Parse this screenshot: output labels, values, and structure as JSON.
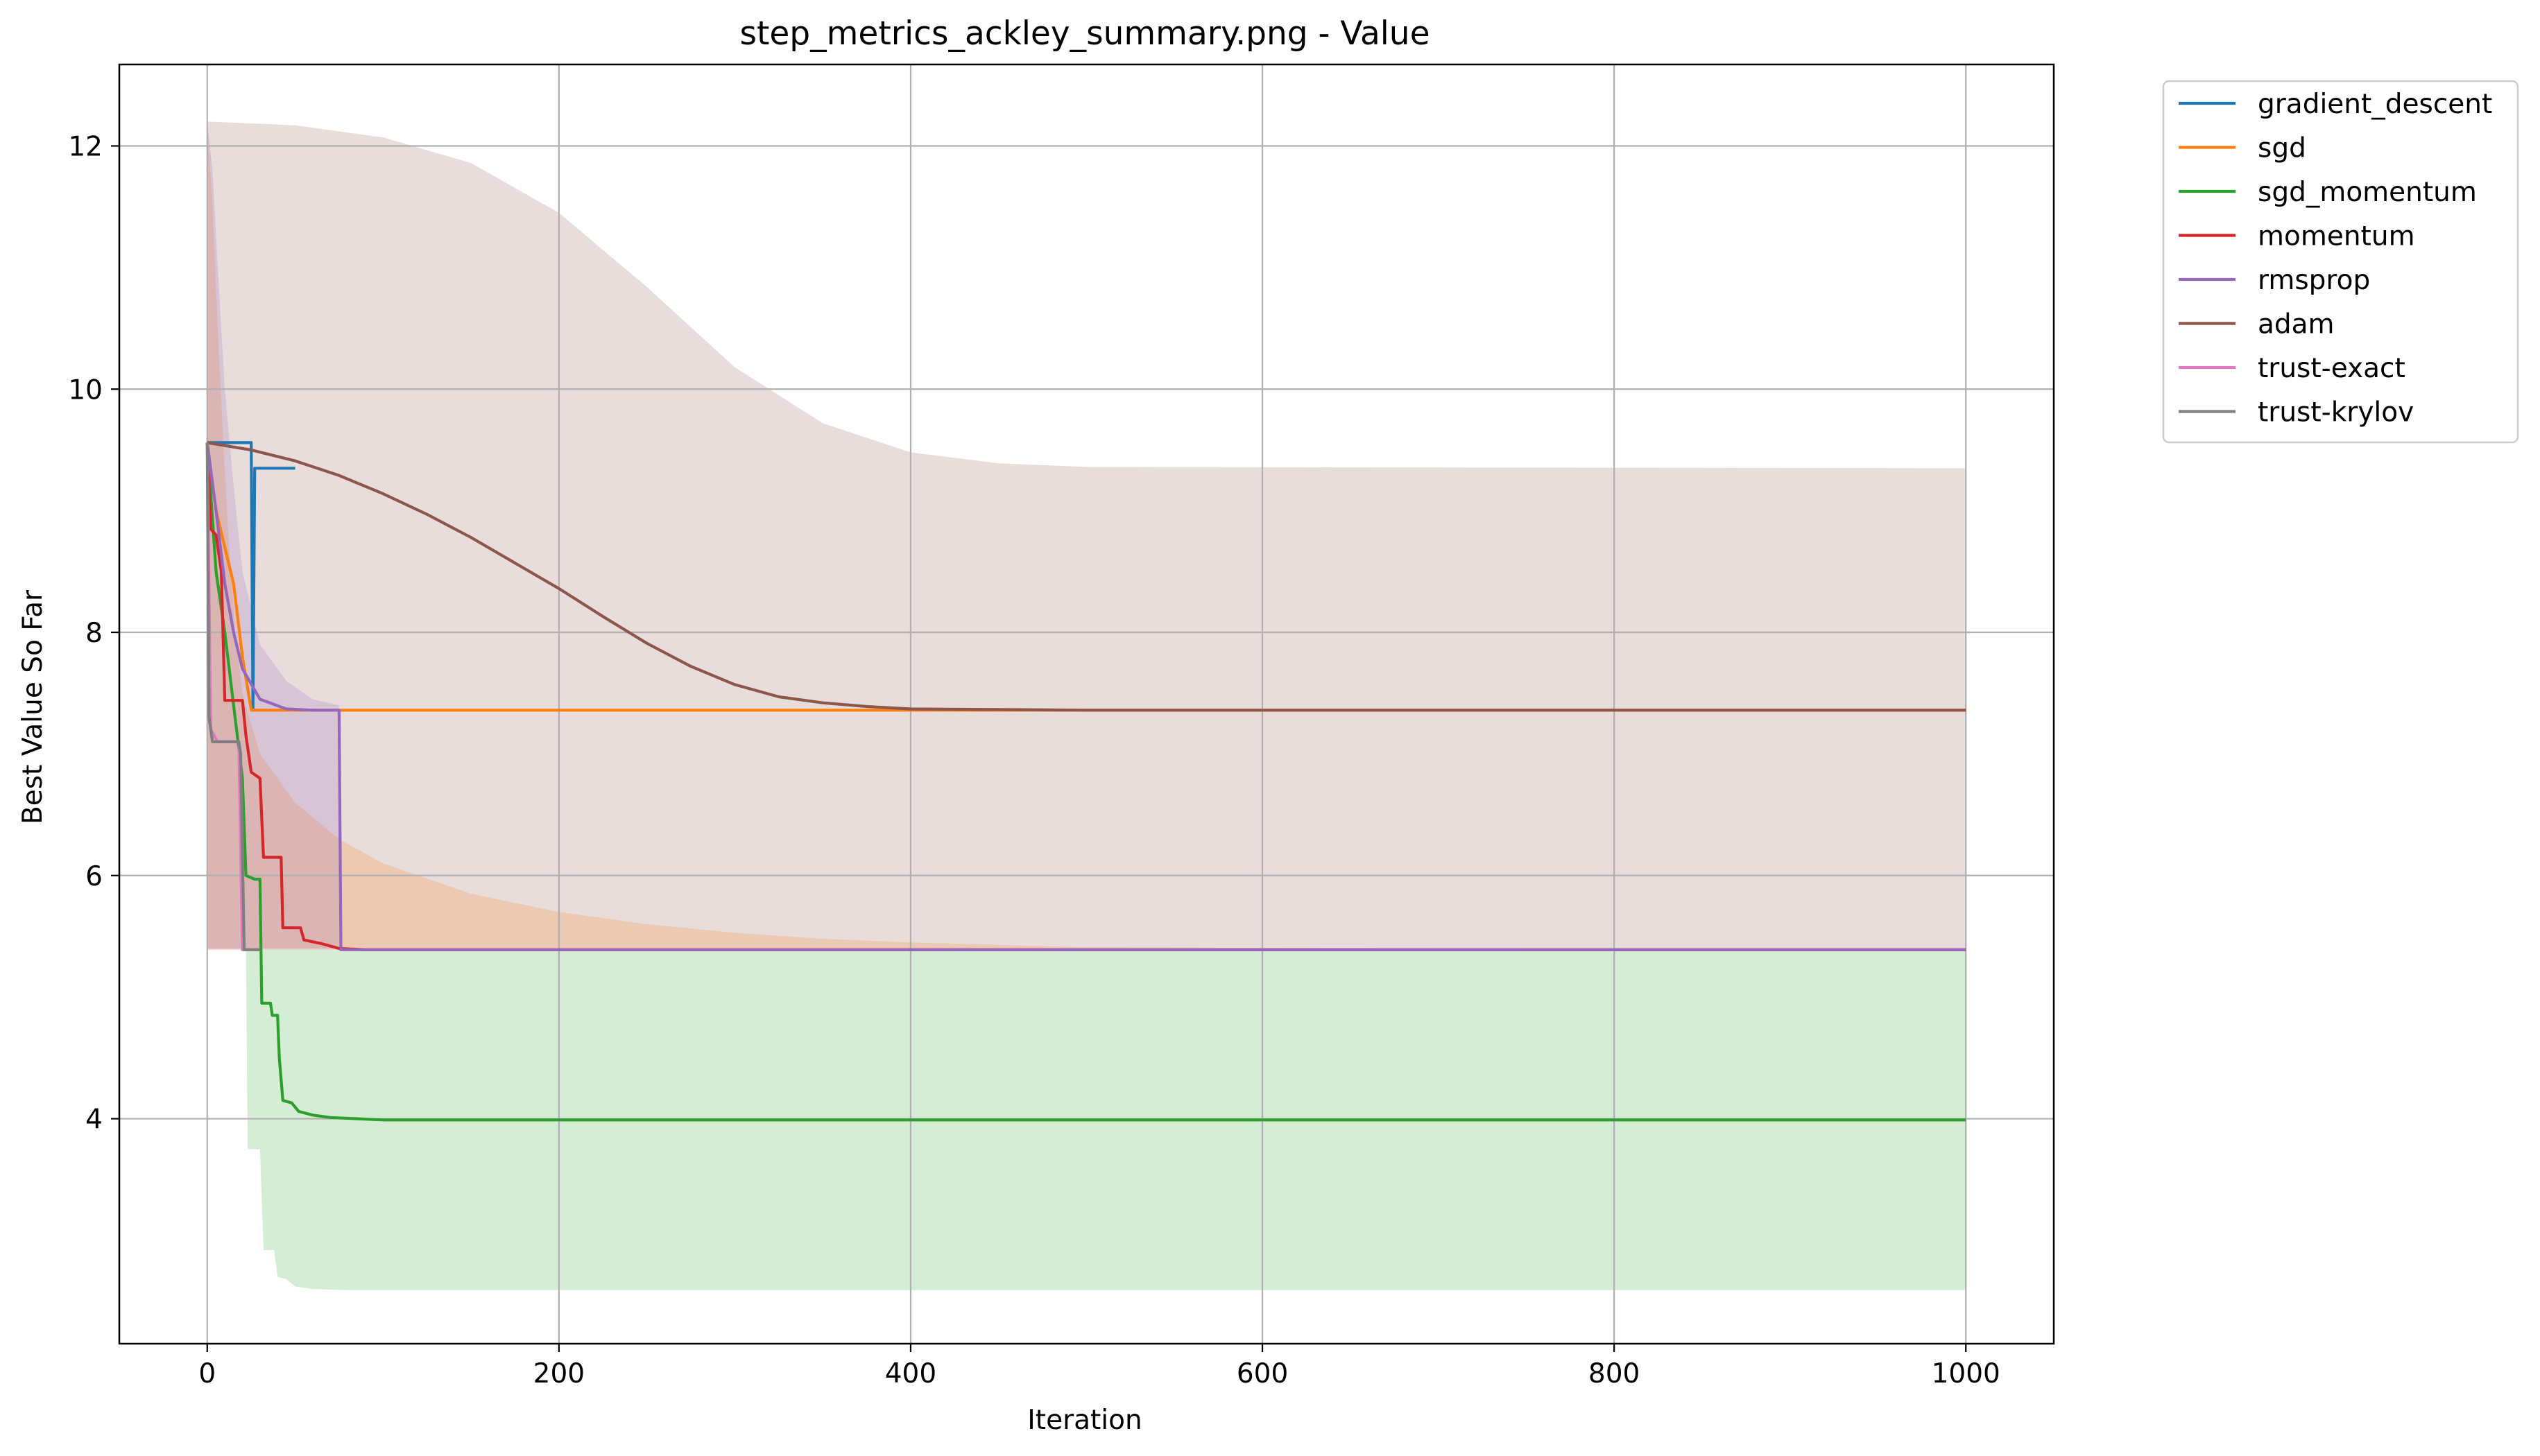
{
  "chart_data": {
    "type": "line",
    "title": "step_metrics_ackley_summary.png - Value",
    "xlabel": "Iteration",
    "ylabel": "Best Value So Far",
    "xlim": [
      -50,
      1050
    ],
    "ylim": [
      2.15,
      12.67
    ],
    "xticks": [
      0,
      200,
      400,
      600,
      800,
      1000
    ],
    "yticks": [
      4,
      6,
      8,
      10,
      12
    ],
    "grid": true,
    "legend_position": "outside-top-right",
    "series": [
      {
        "name": "gradient_descent",
        "color": "#1f77b4",
        "points": [
          [
            0,
            9.56
          ],
          [
            25,
            9.56
          ],
          [
            26,
            7.36
          ],
          [
            27,
            9.35
          ],
          [
            50,
            9.35
          ]
        ]
      },
      {
        "name": "sgd",
        "color": "#ff7f0e",
        "points": [
          [
            0,
            9.55
          ],
          [
            5,
            9.0
          ],
          [
            10,
            8.7
          ],
          [
            15,
            8.4
          ],
          [
            20,
            7.8
          ],
          [
            25,
            7.36
          ],
          [
            1000,
            7.36
          ]
        ]
      },
      {
        "name": "sgd_momentum",
        "color": "#2ca02c",
        "points": [
          [
            0,
            9.56
          ],
          [
            5,
            8.5
          ],
          [
            10,
            8.0
          ],
          [
            15,
            7.4
          ],
          [
            20,
            6.8
          ],
          [
            22,
            6.0
          ],
          [
            27,
            5.97
          ],
          [
            30,
            5.97
          ],
          [
            31,
            4.95
          ],
          [
            36,
            4.95
          ],
          [
            37,
            4.85
          ],
          [
            40,
            4.85
          ],
          [
            41,
            4.5
          ],
          [
            43,
            4.15
          ],
          [
            48,
            4.13
          ],
          [
            52,
            4.06
          ],
          [
            60,
            4.03
          ],
          [
            70,
            4.01
          ],
          [
            100,
            3.99
          ],
          [
            1000,
            3.99
          ]
        ]
      },
      {
        "name": "momentum",
        "color": "#d62728",
        "points": [
          [
            0,
            9.56
          ],
          [
            2,
            8.85
          ],
          [
            5,
            8.8
          ],
          [
            8,
            8.5
          ],
          [
            10,
            7.44
          ],
          [
            20,
            7.44
          ],
          [
            22,
            7.15
          ],
          [
            25,
            6.85
          ],
          [
            30,
            6.8
          ],
          [
            32,
            6.15
          ],
          [
            42,
            6.15
          ],
          [
            43,
            5.57
          ],
          [
            53,
            5.57
          ],
          [
            55,
            5.47
          ],
          [
            65,
            5.44
          ],
          [
            75,
            5.4
          ],
          [
            90,
            5.39
          ],
          [
            1000,
            5.39
          ]
        ]
      },
      {
        "name": "rmsprop",
        "color": "#9467bd",
        "points": [
          [
            0,
            9.56
          ],
          [
            5,
            9.0
          ],
          [
            10,
            8.4
          ],
          [
            15,
            8.0
          ],
          [
            20,
            7.7
          ],
          [
            30,
            7.45
          ],
          [
            45,
            7.37
          ],
          [
            60,
            7.36
          ],
          [
            75,
            7.36
          ],
          [
            76,
            5.39
          ],
          [
            1000,
            5.39
          ]
        ]
      },
      {
        "name": "adam",
        "color": "#8c564b",
        "points": [
          [
            0,
            9.56
          ],
          [
            25,
            9.5
          ],
          [
            50,
            9.41
          ],
          [
            75,
            9.29
          ],
          [
            100,
            9.14
          ],
          [
            125,
            8.97
          ],
          [
            150,
            8.78
          ],
          [
            175,
            8.57
          ],
          [
            200,
            8.36
          ],
          [
            225,
            8.13
          ],
          [
            250,
            7.91
          ],
          [
            275,
            7.72
          ],
          [
            300,
            7.57
          ],
          [
            325,
            7.47
          ],
          [
            350,
            7.42
          ],
          [
            375,
            7.39
          ],
          [
            400,
            7.37
          ],
          [
            450,
            7.365
          ],
          [
            500,
            7.36
          ],
          [
            1000,
            7.36
          ]
        ]
      },
      {
        "name": "trust-exact",
        "color": "#e377c2",
        "points": [
          [
            0,
            9.56
          ],
          [
            2,
            7.2
          ],
          [
            6,
            7.1
          ],
          [
            16,
            7.1
          ],
          [
            18,
            7.1
          ],
          [
            20,
            5.39
          ],
          [
            30,
            5.39
          ]
        ]
      },
      {
        "name": "trust-krylov",
        "color": "#7f7f7f",
        "points": [
          [
            0,
            9.56
          ],
          [
            1,
            7.3
          ],
          [
            3,
            7.1
          ],
          [
            18,
            7.1
          ],
          [
            19,
            7.0
          ],
          [
            20,
            6.2
          ],
          [
            21,
            5.39
          ],
          [
            30,
            5.39
          ]
        ]
      }
    ],
    "bands": [
      {
        "series": "adam",
        "color": "#8c564b",
        "alpha": 0.2,
        "upper": [
          [
            0,
            12.2
          ],
          [
            50,
            12.17
          ],
          [
            100,
            12.07
          ],
          [
            150,
            11.86
          ],
          [
            200,
            11.45
          ],
          [
            250,
            10.84
          ],
          [
            300,
            10.18
          ],
          [
            350,
            9.72
          ],
          [
            400,
            9.48
          ],
          [
            450,
            9.39
          ],
          [
            500,
            9.36
          ],
          [
            1000,
            9.35
          ]
        ],
        "lower": [
          [
            0,
            5.4
          ],
          [
            1000,
            5.4
          ]
        ]
      },
      {
        "series": "sgd",
        "color": "#ff7f0e",
        "alpha": 0.2,
        "upper": [
          [
            0,
            12.2
          ],
          [
            3,
            11.5
          ],
          [
            6,
            10.5
          ],
          [
            9,
            9.6
          ],
          [
            12,
            8.8
          ],
          [
            16,
            8.0
          ],
          [
            20,
            7.5
          ],
          [
            30,
            7.0
          ],
          [
            50,
            6.6
          ],
          [
            75,
            6.3
          ],
          [
            100,
            6.1
          ],
          [
            150,
            5.85
          ],
          [
            200,
            5.7
          ],
          [
            250,
            5.6
          ],
          [
            300,
            5.53
          ],
          [
            350,
            5.48
          ],
          [
            400,
            5.45
          ],
          [
            500,
            5.41
          ],
          [
            1000,
            5.39
          ]
        ],
        "lower": [
          [
            0,
            5.39
          ],
          [
            1000,
            5.39
          ]
        ]
      },
      {
        "series": "rmsprop",
        "color": "#9467bd",
        "alpha": 0.2,
        "upper": [
          [
            0,
            12.2
          ],
          [
            3,
            11.8
          ],
          [
            6,
            11.0
          ],
          [
            10,
            10.0
          ],
          [
            15,
            9.2
          ],
          [
            20,
            8.5
          ],
          [
            30,
            7.9
          ],
          [
            45,
            7.6
          ],
          [
            60,
            7.45
          ],
          [
            75,
            7.4
          ]
        ],
        "lower": [
          [
            0,
            5.39
          ],
          [
            75,
            5.39
          ]
        ]
      },
      {
        "series": "sgd_momentum",
        "color": "#2ca02c",
        "alpha": 0.2,
        "upper": [
          [
            22,
            5.39
          ],
          [
            1000,
            5.39
          ]
        ],
        "lower": [
          [
            22,
            5.39
          ],
          [
            23,
            3.75
          ],
          [
            30,
            3.75
          ],
          [
            32,
            2.92
          ],
          [
            38,
            2.92
          ],
          [
            40,
            2.7
          ],
          [
            45,
            2.68
          ],
          [
            50,
            2.62
          ],
          [
            60,
            2.6
          ],
          [
            80,
            2.59
          ],
          [
            1000,
            2.59
          ]
        ]
      }
    ]
  },
  "legend": {
    "entries": [
      "gradient_descent",
      "sgd",
      "sgd_momentum",
      "momentum",
      "rmsprop",
      "adam",
      "trust-exact",
      "trust-krylov"
    ]
  }
}
